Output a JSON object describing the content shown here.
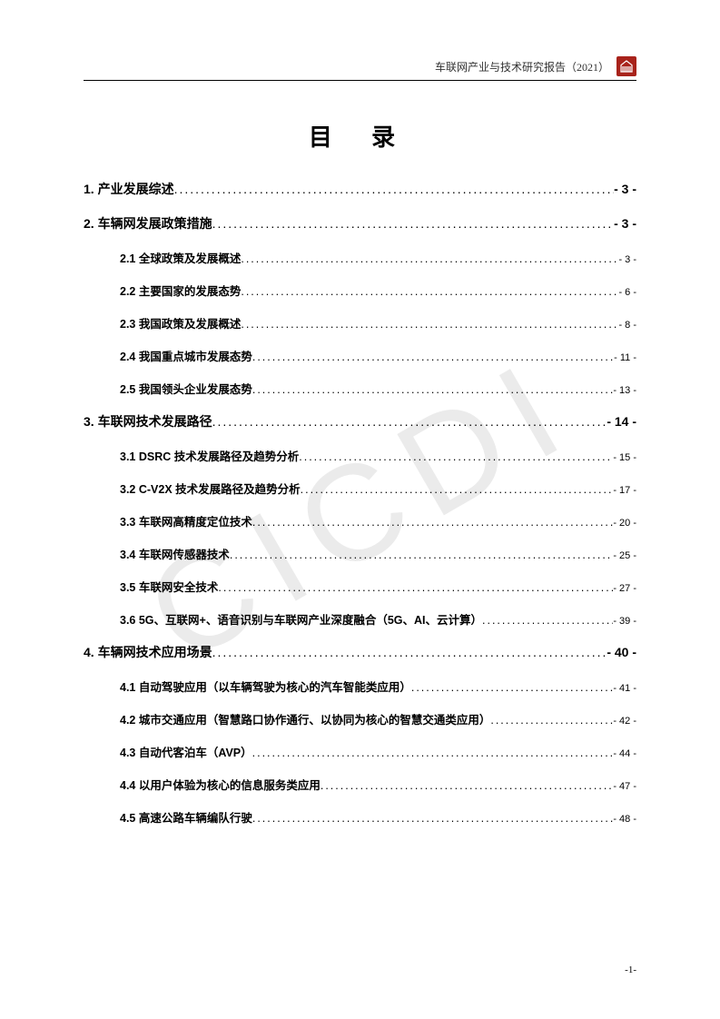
{
  "header": {
    "text": "车联网产业与技术研究报告（2021）"
  },
  "watermark_text": "CICDI",
  "page_title": "目 录",
  "page_number": "-1-",
  "toc": [
    {
      "level": 1,
      "num": "1.",
      "label": "产业发展综述",
      "page": "- 3 -"
    },
    {
      "level": 1,
      "num": "2.",
      "label": "车辆网发展政策措施",
      "page": "- 3 -"
    },
    {
      "level": 2,
      "num": "2.1",
      "label": "全球政策及发展概述",
      "page": "- 3 -"
    },
    {
      "level": 2,
      "num": "2.2",
      "label": "主要国家的发展态势",
      "page": "- 6 -"
    },
    {
      "level": 2,
      "num": "2.3",
      "label": "我国政策及发展概述",
      "page": "- 8 -"
    },
    {
      "level": 2,
      "num": "2.4",
      "label": "我国重点城市发展态势",
      "page": "- 11 -"
    },
    {
      "level": 2,
      "num": "2.5",
      "label": "我国领头企业发展态势",
      "page": "- 13 -"
    },
    {
      "level": 1,
      "num": "3.",
      "label": "车联网技术发展路径",
      "page": "- 14 -"
    },
    {
      "level": 2,
      "num": "3.1",
      "label": "DSRC 技术发展路径及趋势分析",
      "page": "- 15 -"
    },
    {
      "level": 2,
      "num": "3.2",
      "label": "C-V2X 技术发展路径及趋势分析",
      "page": "- 17 -"
    },
    {
      "level": 2,
      "num": "3.3",
      "label": "车联网高精度定位技术",
      "page": "- 20 -"
    },
    {
      "level": 2,
      "num": "3.4",
      "label": "车联网传感器技术",
      "page": "- 25 -"
    },
    {
      "level": 2,
      "num": "3.5",
      "label": "车联网安全技术",
      "page": "- 27 -"
    },
    {
      "level": 2,
      "num": "3.6",
      "label": "5G、互联网+、语音识别与车联网产业深度融合（5G、AI、云计算）",
      "page": "- 39 -"
    },
    {
      "level": 1,
      "num": "4.",
      "label": "车辆网技术应用场景",
      "page": "- 40 -"
    },
    {
      "level": 2,
      "num": "4.1",
      "label": "自动驾驶应用（以车辆驾驶为核心的汽车智能类应用）",
      "page": "- 41 -"
    },
    {
      "level": 2,
      "num": "4.2",
      "label": "城市交通应用（智慧路口协作通行、以协同为核心的智慧交通类应用）",
      "page": "- 42 -"
    },
    {
      "level": 2,
      "num": "4.3",
      "label": "自动代客泊车（AVP）",
      "page": "- 44 -"
    },
    {
      "level": 2,
      "num": "4.4",
      "label": "以用户体验为核心的信息服务类应用",
      "page": "- 47 -"
    },
    {
      "level": 2,
      "num": "4.5",
      "label": "高速公路车辆编队行驶",
      "page": "- 48 -"
    }
  ]
}
